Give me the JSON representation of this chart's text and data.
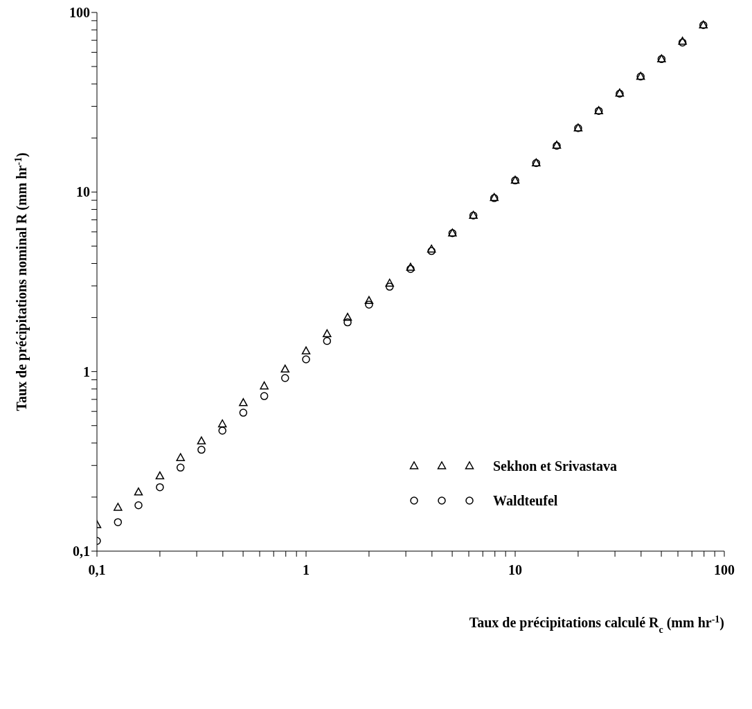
{
  "chart_data": {
    "type": "scatter",
    "xlabel": "Taux de précipitations calculé R$_{c}$ (mm hr$^{-1}$)",
    "ylabel": "Taux de précipitations nominal R (mm hr$^{-1}$)",
    "x": [
      0.1,
      0.126,
      0.158,
      0.2,
      0.251,
      0.316,
      0.398,
      0.501,
      0.631,
      0.794,
      1,
      1.26,
      1.58,
      2,
      2.51,
      3.16,
      3.98,
      5.01,
      6.31,
      7.94,
      10,
      12.6,
      15.8,
      20,
      25.1,
      31.6,
      39.8,
      50.1,
      63.1,
      79.4
    ],
    "series": [
      {
        "name": "Sekhon et Srivastava",
        "color": "#000000",
        "marker": "triangle",
        "values": [
          0.14,
          0.175,
          0.213,
          0.262,
          0.331,
          0.41,
          0.51,
          0.67,
          0.83,
          1.03,
          1.3,
          1.62,
          2.0,
          2.48,
          3.1,
          3.8,
          4.8,
          5.9,
          7.4,
          9.3,
          11.6,
          14.5,
          18.2,
          22.7,
          28.3,
          35.5,
          44,
          55,
          69,
          85
        ]
      },
      {
        "name": "Waldteufel",
        "color": "#000000",
        "marker": "circle",
        "values": [
          0.114,
          0.145,
          0.18,
          0.227,
          0.292,
          0.367,
          0.469,
          0.59,
          0.73,
          0.92,
          1.17,
          1.48,
          1.88,
          2.36,
          2.97,
          3.73,
          4.69,
          5.9,
          7.4,
          9.25,
          11.6,
          14.5,
          18.1,
          22.7,
          28.3,
          35.3,
          44,
          55,
          68,
          85
        ]
      }
    ],
    "log": "xy",
    "xlim": [
      0.1,
      100
    ],
    "ylim": [
      0.1,
      100
    ],
    "xticks": [
      {
        "value": 0.1,
        "label": "0,1"
      },
      {
        "value": 0.2,
        "label": null
      },
      {
        "value": 0.3,
        "label": null
      },
      {
        "value": 0.4,
        "label": null
      },
      {
        "value": 0.5,
        "label": null
      },
      {
        "value": 0.6,
        "label": null
      },
      {
        "value": 0.7,
        "label": null
      },
      {
        "value": 0.8,
        "label": null
      },
      {
        "value": 0.9,
        "label": null
      },
      1,
      {
        "value": 2,
        "label": null
      },
      {
        "value": 3,
        "label": null
      },
      {
        "value": 4,
        "label": null
      },
      {
        "value": 5,
        "label": null
      },
      {
        "value": 6,
        "label": null
      },
      {
        "value": 7,
        "label": null
      },
      {
        "value": 8,
        "label": null
      },
      {
        "value": 9,
        "label": null
      },
      10,
      {
        "value": 20,
        "label": null
      },
      {
        "value": 30,
        "label": null
      },
      {
        "value": 40,
        "label": null
      },
      {
        "value": 50,
        "label": null
      },
      {
        "value": 60,
        "label": null
      },
      {
        "value": 70,
        "label": null
      },
      {
        "value": 80,
        "label": null
      },
      {
        "value": 90,
        "label": null
      },
      100
    ],
    "yticks": [
      {
        "value": 0.1,
        "label": "0,1"
      },
      {
        "value": 0.2,
        "label": null
      },
      {
        "value": 0.3,
        "label": null
      },
      {
        "value": 0.4,
        "label": null
      },
      {
        "value": 0.5,
        "label": null
      },
      {
        "value": 0.6,
        "label": null
      },
      {
        "value": 0.7,
        "label": null
      },
      {
        "value": 0.8,
        "label": null
      },
      {
        "value": 0.9,
        "label": null
      },
      1,
      {
        "value": 2,
        "label": null
      },
      {
        "value": 3,
        "label": null
      },
      {
        "value": 4,
        "label": null
      },
      {
        "value": 5,
        "label": null
      },
      {
        "value": 6,
        "label": null
      },
      {
        "value": 7,
        "label": null
      },
      {
        "value": 8,
        "label": null
      },
      {
        "value": 9,
        "label": null
      },
      10,
      {
        "value": 20,
        "label": null
      },
      {
        "value": 30,
        "label": null
      },
      {
        "value": 40,
        "label": null
      },
      {
        "value": 50,
        "label": null
      },
      {
        "value": 60,
        "label": null
      },
      {
        "value": 70,
        "label": null
      },
      {
        "value": 80,
        "label": null
      },
      {
        "value": 90,
        "label": null
      },
      100
    ],
    "legend": "right",
    "grid": false
  }
}
